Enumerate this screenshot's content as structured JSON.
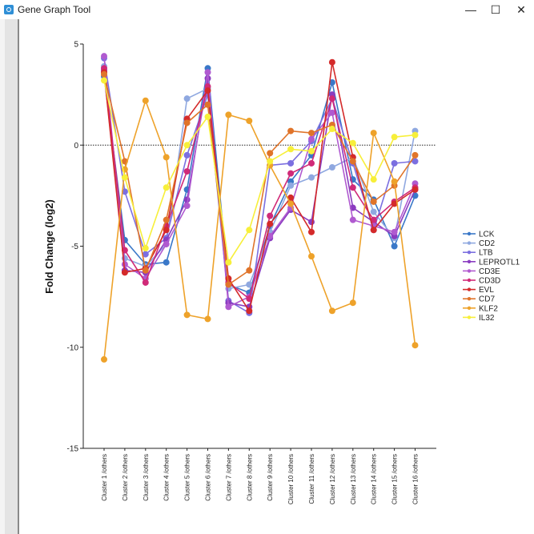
{
  "window": {
    "title": "Gene Graph Tool",
    "minimize_glyph": "—",
    "maximize_glyph": "☐",
    "close_glyph": "✕"
  },
  "chart_data": {
    "type": "line",
    "title": "",
    "xlabel": "",
    "ylabel": "Fold Change (log2)",
    "ylim": [
      -15,
      5
    ],
    "yticks": [
      5,
      0,
      -5,
      -10,
      -15
    ],
    "reference_line": 0,
    "legend_position": "right",
    "grid": false,
    "categories": [
      "Cluster 1 /others",
      "Cluster 2 /others",
      "Cluster 3 /others",
      "Cluster 4 /others",
      "Cluster 5 /others",
      "Cluster 6 /others",
      "Cluster 7 /others",
      "Cluster 8 /others",
      "Cluster 9 /others",
      "Cluster 10 /others",
      "Cluster 11 /others",
      "Cluster 12 /others",
      "Cluster 13 /others",
      "Cluster 14 /others",
      "Cluster 15 /others",
      "Cluster 16 /others"
    ],
    "series": [
      {
        "name": "LCK",
        "color": "#3a78c8",
        "values": [
          3.4,
          -4.7,
          -5.9,
          -5.8,
          -2.2,
          3.8,
          -6.9,
          -7.3,
          -4.0,
          -1.8,
          -0.5,
          3.1,
          -1.7,
          -2.7,
          -5.0,
          -2.5
        ]
      },
      {
        "name": "CD2",
        "color": "#8fa8e0",
        "values": [
          3.9,
          -5.6,
          -6.0,
          -4.9,
          2.3,
          2.8,
          -7.1,
          -6.9,
          -4.3,
          -2.0,
          -1.6,
          -1.1,
          -0.6,
          -3.3,
          -4.6,
          0.7
        ]
      },
      {
        "name": "LTB",
        "color": "#7b6fe0",
        "values": [
          4.3,
          -2.3,
          -5.4,
          -4.6,
          -0.5,
          2.5,
          -7.7,
          -8.3,
          -1.0,
          -0.9,
          0.2,
          2.3,
          -0.9,
          -4.2,
          -0.9,
          -0.8
        ]
      },
      {
        "name": "LEPROTL1",
        "color": "#8a3cc0",
        "values": [
          3.7,
          -6.2,
          -6.3,
          -4.7,
          -2.7,
          3.3,
          -7.8,
          -8.0,
          -4.6,
          -3.2,
          -3.8,
          2.5,
          -3.1,
          -3.8,
          -4.5,
          -2.2
        ]
      },
      {
        "name": "CD3E",
        "color": "#b05ad0",
        "values": [
          4.4,
          -5.9,
          -6.6,
          -4.9,
          -3.0,
          3.6,
          -8.0,
          -7.5,
          -4.5,
          -3.1,
          0.3,
          1.6,
          -3.7,
          -4.0,
          -4.3,
          -1.9
        ]
      },
      {
        "name": "CD3D",
        "color": "#d02a78",
        "values": [
          3.8,
          -5.2,
          -6.8,
          -4.0,
          -1.3,
          2.9,
          -6.8,
          -7.6,
          -3.5,
          -1.4,
          -0.9,
          2.3,
          -2.1,
          -3.7,
          -2.8,
          -2.1
        ]
      },
      {
        "name": "EVL",
        "color": "#d42a2a",
        "values": [
          3.6,
          -6.3,
          -6.1,
          -4.2,
          1.3,
          2.7,
          -6.6,
          -8.2,
          -3.9,
          -2.6,
          -4.3,
          4.1,
          -0.6,
          -4.2,
          -2.9,
          -2.2
        ]
      },
      {
        "name": "CD7",
        "color": "#e0742a",
        "values": [
          3.5,
          -0.8,
          -6.2,
          -3.7,
          1.1,
          2.0,
          -6.9,
          -6.2,
          -0.4,
          0.7,
          0.6,
          1.0,
          -0.8,
          -2.8,
          -2.0,
          -0.5
        ]
      },
      {
        "name": "KLF2",
        "color": "#eea22a",
        "values": [
          -10.6,
          -1.2,
          2.2,
          -0.6,
          -8.4,
          -8.6,
          1.5,
          1.2,
          -1.0,
          -2.9,
          -5.5,
          -8.2,
          -7.8,
          0.6,
          -1.8,
          -9.9
        ]
      },
      {
        "name": "IL32",
        "color": "#f7ef3a",
        "values": [
          3.2,
          -1.6,
          -5.1,
          -2.1,
          0.0,
          1.4,
          -5.8,
          -4.2,
          -0.8,
          -0.2,
          -0.3,
          0.8,
          0.1,
          -1.7,
          0.4,
          0.5
        ]
      }
    ]
  }
}
